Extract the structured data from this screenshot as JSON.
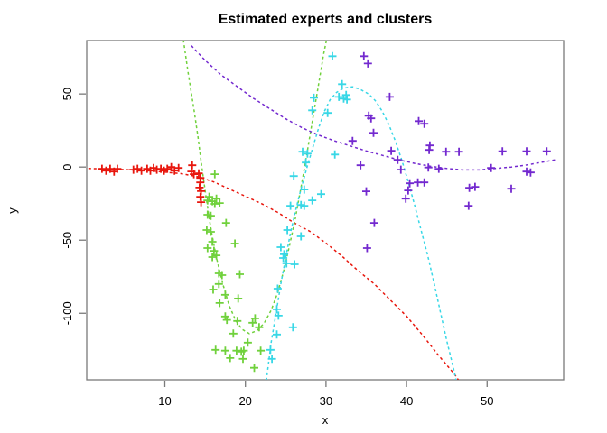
{
  "chart_data": {
    "type": "scatter",
    "title": "Estimated experts and clusters",
    "xlabel": "x",
    "ylabel": "y",
    "xlim": [
      0.3,
      59.5
    ],
    "ylim": [
      -145.5,
      86.5
    ],
    "x_ticks": [
      10,
      20,
      30,
      40,
      50
    ],
    "y_ticks": [
      50,
      0,
      -50,
      -100
    ],
    "grid": false,
    "legend": "none",
    "frame_color": "#7a7a7a",
    "marker": "+",
    "curve_style": "dashed",
    "series": [
      {
        "name": "cluster-red-points",
        "color": "#e8160d",
        "points": [
          [
            2.2,
            -1.2
          ],
          [
            2.7,
            -2.5
          ],
          [
            3.2,
            -1.2
          ],
          [
            3.7,
            -3.1
          ],
          [
            4.1,
            -1.2
          ],
          [
            6.1,
            -1.8
          ],
          [
            6.6,
            -1.2
          ],
          [
            7.1,
            -2.5
          ],
          [
            7.8,
            -1.2
          ],
          [
            8.2,
            -2.5
          ],
          [
            8.6,
            -0.6
          ],
          [
            9,
            -1.8
          ],
          [
            9.5,
            -1.2
          ],
          [
            9.9,
            -2.5
          ],
          [
            10.3,
            -1.2
          ],
          [
            10.8,
            0
          ],
          [
            11.2,
            -2.5
          ],
          [
            11.7,
            -0.6
          ],
          [
            13.4,
            1.2
          ],
          [
            13.3,
            -3
          ],
          [
            13.6,
            -4.9
          ],
          [
            14.2,
            -4.3
          ],
          [
            14.4,
            -7.4
          ],
          [
            14.4,
            -10.5
          ],
          [
            14.3,
            -14
          ],
          [
            14.5,
            -16.5
          ],
          [
            14.4,
            -20.3
          ],
          [
            14.5,
            -24
          ]
        ]
      },
      {
        "name": "cluster-green-points",
        "color": "#70d13c",
        "points": [
          [
            16.2,
            -4.9
          ],
          [
            15.5,
            -20.3
          ],
          [
            16.4,
            -21.6
          ],
          [
            15.3,
            -22.8
          ],
          [
            15.9,
            -23.4
          ],
          [
            16.8,
            -24.6
          ],
          [
            16.2,
            -25.2
          ],
          [
            15.3,
            -32.6
          ],
          [
            15.7,
            -33.3
          ],
          [
            17.6,
            -38.2
          ],
          [
            15.2,
            -43.1
          ],
          [
            15.7,
            -44.3
          ],
          [
            15.9,
            -51.1
          ],
          [
            18.7,
            -52.3
          ],
          [
            15.3,
            -55.4
          ],
          [
            16.1,
            -57.3
          ],
          [
            16.4,
            -60.4
          ],
          [
            15.9,
            -61.6
          ],
          [
            16.7,
            -72.7
          ],
          [
            17.1,
            -73.9
          ],
          [
            19.3,
            -73.3
          ],
          [
            16.7,
            -80
          ],
          [
            16,
            -83.8
          ],
          [
            17.5,
            -87.4
          ],
          [
            19.1,
            -89.9
          ],
          [
            16.8,
            -93
          ],
          [
            17.5,
            -102.2
          ],
          [
            17.7,
            -104.5
          ],
          [
            21.2,
            -103.5
          ],
          [
            19,
            -105.3
          ],
          [
            20.9,
            -106.5
          ],
          [
            21.7,
            -109.6
          ],
          [
            18.5,
            -113.9
          ],
          [
            20.3,
            -120.1
          ],
          [
            16.3,
            -125
          ],
          [
            17.5,
            -125.6
          ],
          [
            18.9,
            -125.6
          ],
          [
            19.5,
            -126.3
          ],
          [
            19.8,
            -125.6
          ],
          [
            21.9,
            -125.6
          ],
          [
            18.1,
            -130.6
          ],
          [
            19.7,
            -131.2
          ],
          [
            21.1,
            -137.3
          ]
        ]
      },
      {
        "name": "cluster-cyan-points",
        "color": "#38d7e6",
        "points": [
          [
            30.8,
            75.8
          ],
          [
            32,
            56.7
          ],
          [
            32.5,
            49.3
          ],
          [
            31.6,
            48
          ],
          [
            32.2,
            46.8
          ],
          [
            32.6,
            46.2
          ],
          [
            28.5,
            47.4
          ],
          [
            28.3,
            38.8
          ],
          [
            30.2,
            37
          ],
          [
            27.1,
            10.5
          ],
          [
            27.7,
            9.2
          ],
          [
            31.1,
            8.6
          ],
          [
            27.5,
            3.1
          ],
          [
            26,
            -6.2
          ],
          [
            27.3,
            -15.4
          ],
          [
            29.4,
            -18.5
          ],
          [
            28.3,
            -22.8
          ],
          [
            26.9,
            -25.9
          ],
          [
            25.6,
            -26.5
          ],
          [
            27.3,
            -26.5
          ],
          [
            25.2,
            -43.1
          ],
          [
            26.9,
            -47.4
          ],
          [
            24.4,
            -54.8
          ],
          [
            24.8,
            -59.7
          ],
          [
            24.7,
            -62.2
          ],
          [
            25.1,
            -65.9
          ],
          [
            26.1,
            -66.5
          ],
          [
            24,
            -83.2
          ],
          [
            23.9,
            -97.3
          ],
          [
            24.1,
            -101.6
          ],
          [
            25.9,
            -109.6
          ],
          [
            23.9,
            -114.5
          ],
          [
            23.1,
            -125
          ],
          [
            23.3,
            -131.2
          ]
        ]
      },
      {
        "name": "cluster-purple-points",
        "color": "#7329cf",
        "points": [
          [
            34.7,
            75.8
          ],
          [
            35.2,
            70.8
          ],
          [
            37.9,
            48
          ],
          [
            41.5,
            31.4
          ],
          [
            42.2,
            29.6
          ],
          [
            35.3,
            35.1
          ],
          [
            35.6,
            33.3
          ],
          [
            35.9,
            23.4
          ],
          [
            33.3,
            17.9
          ],
          [
            42.9,
            14.8
          ],
          [
            42.8,
            11.7
          ],
          [
            38.1,
            11.1
          ],
          [
            44.9,
            10.5
          ],
          [
            46.5,
            10.5
          ],
          [
            51.9,
            10.8
          ],
          [
            54.9,
            10.8
          ],
          [
            57.4,
            10.8
          ],
          [
            38.9,
            4.9
          ],
          [
            34.3,
            1.2
          ],
          [
            42.7,
            -0.3
          ],
          [
            39.3,
            -1.8
          ],
          [
            44,
            -1.2
          ],
          [
            50.5,
            -0.6
          ],
          [
            54.9,
            -3.1
          ],
          [
            55.4,
            -3.7
          ],
          [
            41.4,
            -10.5
          ],
          [
            42.2,
            -10.5
          ],
          [
            40.4,
            -11.1
          ],
          [
            40.2,
            -16
          ],
          [
            35,
            -16.6
          ],
          [
            47.8,
            -14.2
          ],
          [
            48.5,
            -13.5
          ],
          [
            53,
            -14.8
          ],
          [
            39.9,
            -21.6
          ],
          [
            47.7,
            -26.5
          ],
          [
            36,
            -38.2
          ],
          [
            35.1,
            -55.4
          ]
        ]
      }
    ],
    "curves": [
      {
        "name": "expert-red-curve",
        "color": "#e8160d",
        "points": [
          [
            0.5,
            -1
          ],
          [
            4,
            -1.5
          ],
          [
            8,
            -2.5
          ],
          [
            12,
            -4.5
          ],
          [
            14,
            -6.5
          ],
          [
            16,
            -10
          ],
          [
            18,
            -15
          ],
          [
            20,
            -20
          ],
          [
            22,
            -25
          ],
          [
            24,
            -31
          ],
          [
            26,
            -38
          ],
          [
            28,
            -44
          ],
          [
            30,
            -52
          ],
          [
            32,
            -61
          ],
          [
            34,
            -71
          ],
          [
            36,
            -80
          ],
          [
            38,
            -91
          ],
          [
            40,
            -102
          ],
          [
            42,
            -115
          ],
          [
            44,
            -129
          ],
          [
            46,
            -142
          ],
          [
            46.6,
            -147
          ]
        ]
      },
      {
        "name": "expert-green-curve",
        "color": "#70d13c",
        "points": [
          [
            12.3,
            87
          ],
          [
            12.9,
            64
          ],
          [
            13.6,
            40
          ],
          [
            14.1,
            21
          ],
          [
            14.5,
            4
          ],
          [
            15.1,
            -20
          ],
          [
            15.7,
            -42
          ],
          [
            16.4,
            -62
          ],
          [
            17.2,
            -80
          ],
          [
            18,
            -95
          ],
          [
            18.8,
            -105
          ],
          [
            19.6,
            -111
          ],
          [
            20.5,
            -114
          ],
          [
            21.4,
            -112
          ],
          [
            22.3,
            -107
          ],
          [
            23.2,
            -98
          ],
          [
            24,
            -86
          ],
          [
            24.8,
            -70
          ],
          [
            25.5,
            -53
          ],
          [
            26.2,
            -35
          ],
          [
            26.9,
            -14
          ],
          [
            27.6,
            8
          ],
          [
            28.3,
            31
          ],
          [
            29,
            54
          ],
          [
            29.7,
            77
          ],
          [
            30.1,
            88
          ]
        ]
      },
      {
        "name": "expert-cyan-curve",
        "color": "#38d7e6",
        "points": [
          [
            22.6,
            -146
          ],
          [
            23.2,
            -120
          ],
          [
            23.8,
            -100
          ],
          [
            24.4,
            -80
          ],
          [
            25,
            -62
          ],
          [
            25.6,
            -45
          ],
          [
            26.3,
            -28
          ],
          [
            27,
            -13
          ],
          [
            27.7,
            1
          ],
          [
            28.4,
            14
          ],
          [
            29.1,
            27
          ],
          [
            29.8,
            38
          ],
          [
            30.5,
            46
          ],
          [
            31.3,
            51
          ],
          [
            32.2,
            54
          ],
          [
            33.3,
            55
          ],
          [
            34.3,
            53
          ],
          [
            35.3,
            50
          ],
          [
            36.2,
            45
          ],
          [
            37,
            38
          ],
          [
            37.8,
            29
          ],
          [
            38.6,
            18
          ],
          [
            39.4,
            5
          ],
          [
            40.2,
            -10
          ],
          [
            41,
            -26
          ],
          [
            41.8,
            -43
          ],
          [
            42.6,
            -60
          ],
          [
            43.4,
            -79
          ],
          [
            44.2,
            -99
          ],
          [
            45,
            -119
          ],
          [
            45.8,
            -137
          ],
          [
            46.2,
            -147
          ]
        ]
      },
      {
        "name": "expert-purple-curve",
        "color": "#7329cf",
        "points": [
          [
            13.3,
            83
          ],
          [
            15,
            73
          ],
          [
            17,
            63
          ],
          [
            19,
            55
          ],
          [
            21,
            47
          ],
          [
            23,
            40
          ],
          [
            25,
            33
          ],
          [
            27,
            27
          ],
          [
            29,
            22
          ],
          [
            31,
            18
          ],
          [
            33,
            14.5
          ],
          [
            35,
            11
          ],
          [
            37,
            8
          ],
          [
            39,
            5
          ],
          [
            41,
            2.5
          ],
          [
            43,
            0.5
          ],
          [
            45,
            -1
          ],
          [
            47,
            -2
          ],
          [
            49,
            -2
          ],
          [
            51,
            -1
          ],
          [
            53,
            0
          ],
          [
            55,
            1.5
          ],
          [
            57,
            3.5
          ],
          [
            58.5,
            5
          ]
        ]
      }
    ]
  }
}
